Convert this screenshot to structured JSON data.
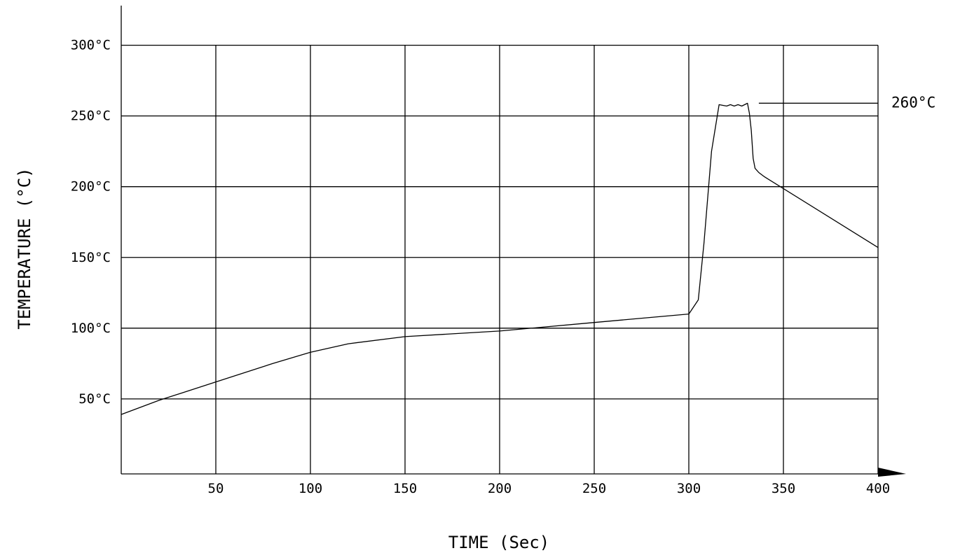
{
  "chart_data": {
    "type": "line",
    "xlabel": "TIME (Sec)",
    "ylabel": "TEMPERATURE (°C)",
    "xlim": [
      0,
      400
    ],
    "ylim": [
      -3,
      328
    ],
    "grid": true,
    "x_ticks": [
      {
        "value": 50,
        "label": "50"
      },
      {
        "value": 100,
        "label": "100"
      },
      {
        "value": 150,
        "label": "150"
      },
      {
        "value": 200,
        "label": "200"
      },
      {
        "value": 250,
        "label": "250"
      },
      {
        "value": 300,
        "label": "300"
      },
      {
        "value": 350,
        "label": "350"
      },
      {
        "value": 400,
        "label": "400"
      }
    ],
    "y_ticks": [
      {
        "value": 50,
        "label": "50°C"
      },
      {
        "value": 100,
        "label": "100°C"
      },
      {
        "value": 150,
        "label": "150°C"
      },
      {
        "value": 200,
        "label": "200°C"
      },
      {
        "value": 250,
        "label": "250°C"
      },
      {
        "value": 300,
        "label": "300°C"
      }
    ],
    "series": [
      {
        "x": [
          0,
          20,
          50,
          80,
          100,
          120,
          150,
          200,
          250,
          300,
          305,
          308,
          312,
          316,
          320,
          322,
          324,
          326,
          328,
          331,
          332,
          333,
          334,
          335,
          337,
          340,
          400
        ],
        "y": [
          39,
          49,
          62,
          75,
          83,
          89,
          94,
          98,
          104,
          110,
          120,
          160,
          225,
          258,
          257,
          258,
          257,
          258,
          257,
          259,
          252,
          240,
          220,
          213,
          210,
          207,
          157
        ]
      }
    ],
    "annotations": [
      {
        "text": "260°C",
        "x_start": 337,
        "x_end": 400,
        "y": 259
      }
    ]
  }
}
